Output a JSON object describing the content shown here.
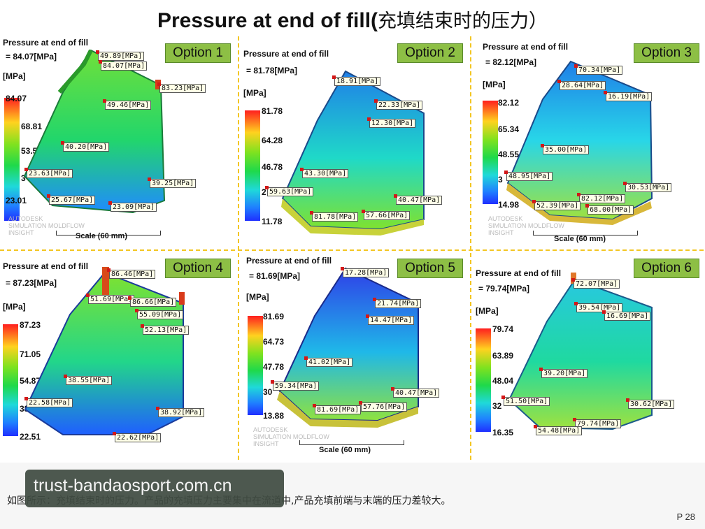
{
  "header": {
    "title_en": "Pressure at end of fill(",
    "title_cn": "充填结束时的压力）"
  },
  "panels": [
    {
      "option": "Option 1",
      "title": "Pressure at end of fill",
      "value": "= 84.07[MPa]",
      "unit": "[MPa]",
      "ticks": [
        "84.07",
        "68.81",
        "53.54",
        "3",
        "23.01"
      ],
      "labels": [
        "49.89[MPa]",
        "84.07[MPa]",
        "83.23[MPa]",
        "49.46[MPa]",
        "40.20[MPa]",
        "23.63[MPa]",
        "39.25[MPa]",
        "25.67[MPa]",
        "23.09[MPa]"
      ],
      "wm": [
        "AUTODESK",
        "SIMULATION MOLDFLOW",
        "INSIGHT"
      ],
      "scale": "Scale (60 mm)"
    },
    {
      "option": "Option 2",
      "title": "Pressure at end of fill",
      "value": "= 81.78[MPa]",
      "unit": "[MPa]",
      "ticks": [
        "81.78",
        "64.28",
        "46.78",
        "2",
        "11.78"
      ],
      "labels": [
        "18.91[MPa]",
        "22.33[MPa]",
        "12.30[MPa]",
        "43.30[MPa]",
        "59.63[MPa]",
        "40.47[MPa]",
        "81.78[MPa]",
        "57.66[MPa]"
      ],
      "wm": [],
      "scale": ""
    },
    {
      "option": "Option 3",
      "title": "Pressure at end of fill",
      "value": "= 82.12[MPa]",
      "unit": "[MPa]",
      "ticks": [
        "82.12",
        "65.34",
        "48.55",
        "3",
        "14.98"
      ],
      "labels": [
        "70.34[MPa]",
        "28.64[MPa]",
        "16.19[MPa]",
        "35.00[MPa]",
        "48.95[MPa]",
        "30.53[MPa]",
        "82.12[MPa]",
        "52.39[MPa]",
        "68.00[MPa]"
      ],
      "wm": [
        "AUTODESK",
        "SIMULATION MOLDFLOW",
        "INSIGHT"
      ],
      "scale": "Scale (60 mm)"
    },
    {
      "option": "Option 4",
      "title": "Pressure at end of fill",
      "value": "= 87.23[MPa]",
      "unit": "[MPa]",
      "ticks": [
        "87.23",
        "71.05",
        "54.87",
        "38",
        "22.51"
      ],
      "labels": [
        "86.46[MPa]",
        "51.69[MPa]",
        "86.66[MPa]",
        "55.09[MPa]",
        "52.13[MPa]",
        "38.55[MPa]",
        "22.58[MPa]",
        "38.92[MPa]",
        "22.62[MPa]"
      ],
      "wm": [],
      "scale": ""
    },
    {
      "option": "Option 5",
      "title": "Pressure at end of fill",
      "value": "= 81.69[MPa]",
      "unit": "[MPa]",
      "ticks": [
        "81.69",
        "64.73",
        "47.78",
        "30",
        "13.88"
      ],
      "labels": [
        "17.28[MPa]",
        "21.74[MPa]",
        "14.47[MPa]",
        "41.02[MPa]",
        "59.34[MPa]",
        "40.47[MPa]",
        "81.69[MPa]",
        "57.76[MPa]"
      ],
      "wm": [
        "AUTODESK",
        "SIMULATION MOLDFLOW",
        "INSIGHT"
      ],
      "scale": "Scale (60 mm)"
    },
    {
      "option": "Option 6",
      "title": "Pressure at end of fill",
      "value": "= 79.74[MPa]",
      "unit": "[MPa]",
      "ticks": [
        "79.74",
        "63.89",
        "48.04",
        "32",
        "16.35"
      ],
      "labels": [
        "72.07[MPa]",
        "39.54[MPa]",
        "16.69[MPa]",
        "39.20[MPa]",
        "51.50[MPa]",
        "30.62[MPa]",
        "79.74[MPa]",
        "54.48[MPa]"
      ],
      "wm": [],
      "scale": ""
    }
  ],
  "caption": "如图所示：充填结束时的压力。产品的充填压力主要集中在流道中,产品充填前端与末端的压力差较大。",
  "page_number": "P 28",
  "watermark_banner": "trust-bandaosport.com.cn",
  "colors": {
    "option_bg": "#8dbf45",
    "divider": "#f3c623",
    "label_bg": "#ffffe8"
  }
}
